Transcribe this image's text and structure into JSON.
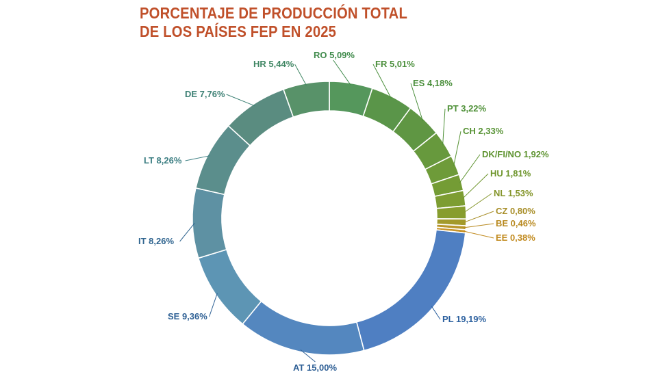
{
  "title": {
    "line1": "PORCENTAJE DE PRODUCCIÓN TOTAL",
    "line2": "DE LOS PAÍSES FEP EN 2025"
  },
  "colors": {
    "title": "#c0502a"
  },
  "chart_data": {
    "type": "pie",
    "style": "donut",
    "title": "PORCENTAJE DE PRODUCCIÓN TOTAL DE LOS PAÍSES FEP EN 2025",
    "slices": [
      {
        "code": "RO",
        "value": 5.09,
        "label": "RO 5,09%",
        "color": "#55975c",
        "label_color": "#3f8a4b"
      },
      {
        "code": "FR",
        "value": 5.01,
        "label": "FR 5,01%",
        "color": "#5a9549",
        "label_color": "#4b8f3c"
      },
      {
        "code": "ES",
        "value": 4.18,
        "label": "ES 4,18%",
        "color": "#5f9643",
        "label_color": "#4b8f3c"
      },
      {
        "code": "PT",
        "value": 3.22,
        "label": "PT 3,22%",
        "color": "#67993d",
        "label_color": "#4e9037"
      },
      {
        "code": "CH",
        "value": 2.33,
        "label": "CH 2,33%",
        "color": "#6e9b39",
        "label_color": "#569233"
      },
      {
        "code": "DK/FI/NO",
        "value": 1.92,
        "label": "DK/FI/NO 1,92%",
        "color": "#749c35",
        "label_color": "#5e9330"
      },
      {
        "code": "HU",
        "value": 1.81,
        "label": "HU 1,81%",
        "color": "#7d9d32",
        "label_color": "#6e952c"
      },
      {
        "code": "NL",
        "value": 1.53,
        "label": "NL 1,53%",
        "color": "#879d2e",
        "label_color": "#84952a"
      },
      {
        "code": "CZ",
        "value": 0.8,
        "label": "CZ 0,80%",
        "color": "#a39a2b",
        "label_color": "#a78d26"
      },
      {
        "code": "BE",
        "value": 0.46,
        "label": "BE 0,46%",
        "color": "#b9962a",
        "label_color": "#b8891f"
      },
      {
        "code": "EE",
        "value": 0.38,
        "label": "EE 0,38%",
        "color": "#c9952a",
        "label_color": "#c18a1e"
      },
      {
        "code": "PL",
        "value": 19.19,
        "label": "PL 19,19%",
        "color": "#4f7fc2",
        "label_color": "#2a5f9e"
      },
      {
        "code": "AT",
        "value": 15.0,
        "label": "AT 15,00%",
        "color": "#5487bf",
        "label_color": "#2e5f95"
      },
      {
        "code": "SE",
        "value": 9.36,
        "label": "SE 9,36%",
        "color": "#5d95b4",
        "label_color": "#2f6195"
      },
      {
        "code": "IT",
        "value": 8.26,
        "label": "IT 8,26%",
        "color": "#5e91a3",
        "label_color": "#2f648f"
      },
      {
        "code": "LT",
        "value": 8.26,
        "label": "LT 8,26%",
        "color": "#5b8e8c",
        "label_color": "#3d7f83"
      },
      {
        "code": "DE",
        "value": 7.76,
        "label": "DE 7,76%",
        "color": "#5a8c80",
        "label_color": "#3e8175"
      },
      {
        "code": "HR",
        "value": 5.44,
        "label": "HR 5,44%",
        "color": "#589269",
        "label_color": "#3f8663"
      }
    ],
    "start_angle_deg": 0,
    "direction": "clockwise"
  }
}
